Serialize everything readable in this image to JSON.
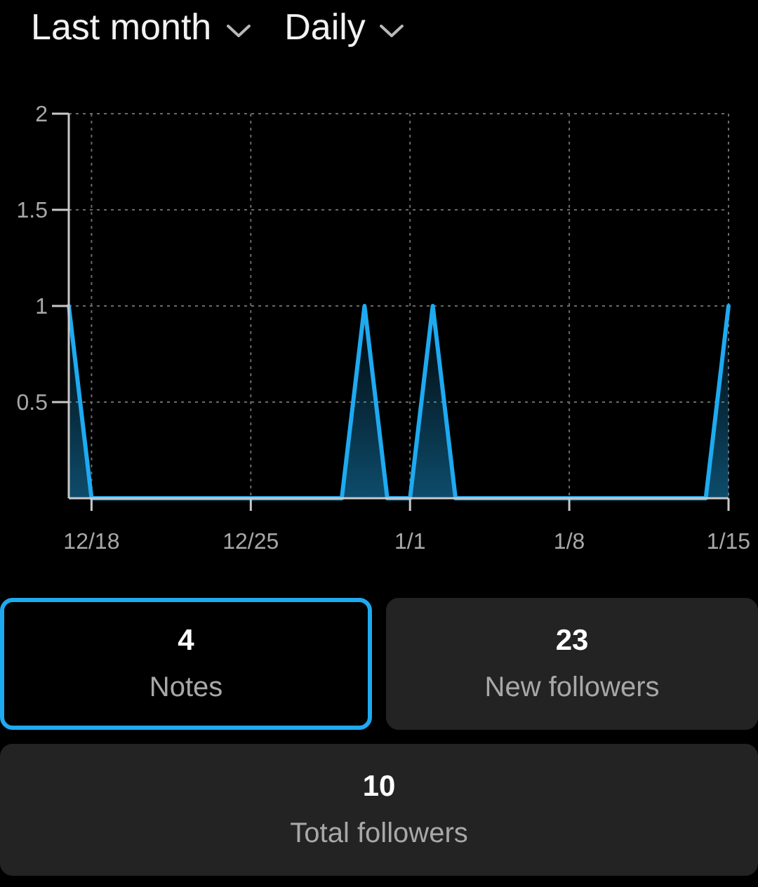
{
  "chart_data": [
    {
      "type": "area",
      "annotations": [
        "Last month",
        "Daily"
      ],
      "color": "#1eaaf0",
      "grid": true,
      "categories": [
        null,
        "12/18",
        null,
        null,
        null,
        null,
        null,
        null,
        "12/25",
        null,
        null,
        null,
        null,
        null,
        null,
        "1/1",
        null,
        null,
        null,
        null,
        null,
        null,
        "1/8",
        null,
        null,
        null,
        null,
        null,
        null,
        "1/15"
      ],
      "values": [
        1,
        0,
        0,
        0,
        0,
        0,
        0,
        0,
        0,
        0,
        0,
        0,
        0,
        1,
        0,
        0,
        1,
        0,
        0,
        0,
        0,
        0,
        0,
        0,
        0,
        0,
        0,
        0,
        0,
        1
      ],
      "ylim": [
        0,
        2
      ],
      "yticks": [
        0.5,
        1,
        1.5,
        2
      ]
    },
    {
      "type": "other",
      "categories": [
        "Notes",
        "New followers",
        "Total followers"
      ],
      "values": [
        4,
        23,
        10
      ],
      "data_labels": true
    }
  ]
}
